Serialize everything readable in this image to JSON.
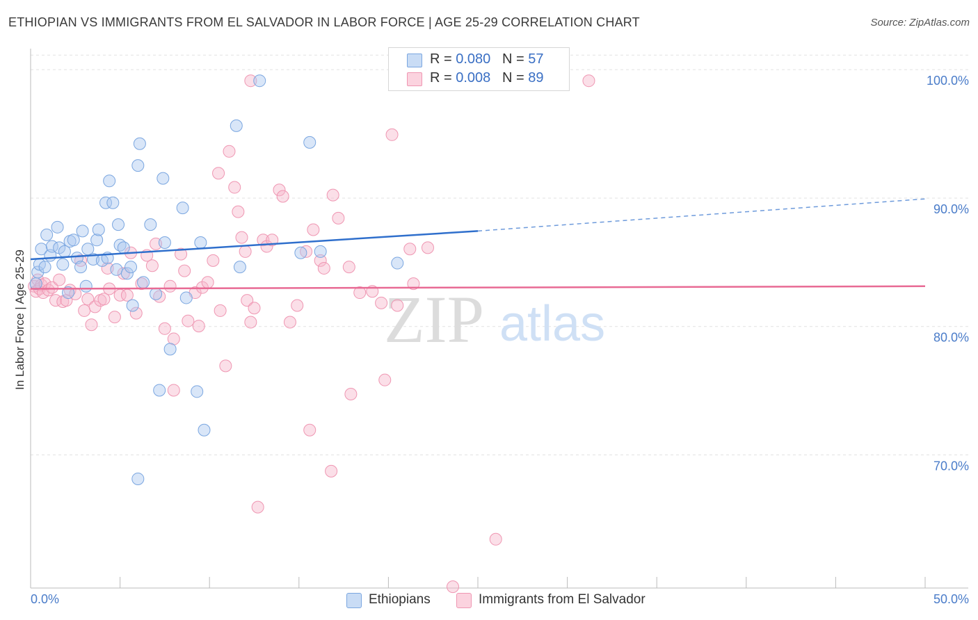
{
  "header": {
    "title": "ETHIOPIAN VS IMMIGRANTS FROM EL SALVADOR IN LABOR FORCE | AGE 25-29 CORRELATION CHART",
    "source": "Source: ZipAtlas.com"
  },
  "legend": {
    "rows": [
      {
        "r_label": "R = ",
        "r_value": "0.080",
        "n_label": "N = ",
        "n_value": "57"
      },
      {
        "r_label": "R = ",
        "r_value": "0.008",
        "n_label": "N = ",
        "n_value": "89"
      }
    ]
  },
  "bottom_legend": {
    "series1": "Ethiopians",
    "series2": "Immigrants from El Salvador"
  },
  "watermark": {
    "zip": "ZIP",
    "atlas": "atlas"
  },
  "colors": {
    "blue_fill": "#aac8f0",
    "blue_stroke": "#7aa6e0",
    "blue_line": "#2f6fcc",
    "pink_fill": "#f6b8cb",
    "pink_stroke": "#ef96b2",
    "pink_line": "#e86a94",
    "tick_text": "#4a7cc9"
  },
  "chart_data": {
    "type": "scatter",
    "title": "ETHIOPIAN VS IMMIGRANTS FROM EL SALVADOR IN LABOR FORCE | AGE 25-29 CORRELATION CHART",
    "xlabel": "",
    "ylabel": "In Labor Force | Age 25-29",
    "xlim": [
      0,
      50
    ],
    "ylim": [
      60.5,
      102.5
    ],
    "x_tick_labels": [
      "0.0%",
      "50.0%"
    ],
    "y_ticks": [
      70,
      80,
      90,
      100
    ],
    "y_tick_labels": [
      "70.0%",
      "80.0%",
      "90.0%",
      "100.0%"
    ],
    "grid": true,
    "legend_position": "top-center",
    "series": [
      {
        "name": "Ethiopians",
        "R": 0.08,
        "N": 57,
        "trend": {
          "x0": 0,
          "y0": 86.1,
          "x1": 25,
          "y1": 88.3,
          "dashed_x1": 50,
          "dashed_y1": 90.8
        },
        "points": [
          [
            0.3,
            84.2
          ],
          [
            0.4,
            85.1
          ],
          [
            0.5,
            85.7
          ],
          [
            0.6,
            86.9
          ],
          [
            0.8,
            85.5
          ],
          [
            0.9,
            88.0
          ],
          [
            1.1,
            86.4
          ],
          [
            1.2,
            87.1
          ],
          [
            1.5,
            88.6
          ],
          [
            1.6,
            87.0
          ],
          [
            1.8,
            85.7
          ],
          [
            1.9,
            86.7
          ],
          [
            2.2,
            87.5
          ],
          [
            2.4,
            87.6
          ],
          [
            2.6,
            86.2
          ],
          [
            2.8,
            85.5
          ],
          [
            2.9,
            88.3
          ],
          [
            3.2,
            86.9
          ],
          [
            3.5,
            86.1
          ],
          [
            3.7,
            87.6
          ],
          [
            3.8,
            88.4
          ],
          [
            4.0,
            86.0
          ],
          [
            4.2,
            90.5
          ],
          [
            4.3,
            86.2
          ],
          [
            4.4,
            92.2
          ],
          [
            4.6,
            90.5
          ],
          [
            4.8,
            85.3
          ],
          [
            4.9,
            88.8
          ],
          [
            5.0,
            87.2
          ],
          [
            5.2,
            87.0
          ],
          [
            5.4,
            85.0
          ],
          [
            5.6,
            85.5
          ],
          [
            5.7,
            82.5
          ],
          [
            6.0,
            93.4
          ],
          [
            6.1,
            95.1
          ],
          [
            6.3,
            84.3
          ],
          [
            6.7,
            88.8
          ],
          [
            7.0,
            83.4
          ],
          [
            7.2,
            75.9
          ],
          [
            7.4,
            92.4
          ],
          [
            7.5,
            87.4
          ],
          [
            7.8,
            79.1
          ],
          [
            8.5,
            90.1
          ],
          [
            8.7,
            83.1
          ],
          [
            9.3,
            75.8
          ],
          [
            9.5,
            87.4
          ],
          [
            9.7,
            72.8
          ],
          [
            11.5,
            96.5
          ],
          [
            11.7,
            85.5
          ],
          [
            12.8,
            100.0
          ],
          [
            15.1,
            86.6
          ],
          [
            15.6,
            95.2
          ],
          [
            16.2,
            86.7
          ],
          [
            20.5,
            85.8
          ],
          [
            6.0,
            69.0
          ],
          [
            3.1,
            84.0
          ],
          [
            2.1,
            83.5
          ]
        ]
      },
      {
        "name": "Immigrants from El Salvador",
        "R": 0.008,
        "N": 89,
        "trend": {
          "x0": 0,
          "y0": 83.8,
          "x1": 50,
          "y1": 84.0
        },
        "points": [
          [
            0.2,
            84.0
          ],
          [
            0.3,
            83.6
          ],
          [
            0.4,
            84.5
          ],
          [
            0.5,
            83.8
          ],
          [
            0.6,
            84.1
          ],
          [
            0.7,
            83.5
          ],
          [
            0.8,
            84.2
          ],
          [
            1.0,
            83.7
          ],
          [
            1.2,
            83.9
          ],
          [
            1.4,
            82.9
          ],
          [
            1.6,
            84.5
          ],
          [
            1.8,
            82.8
          ],
          [
            2.0,
            82.9
          ],
          [
            2.2,
            83.7
          ],
          [
            2.5,
            83.4
          ],
          [
            2.8,
            86.0
          ],
          [
            3.0,
            82.1
          ],
          [
            3.2,
            83.0
          ],
          [
            3.4,
            81.0
          ],
          [
            3.6,
            82.4
          ],
          [
            3.9,
            82.9
          ],
          [
            4.1,
            83.0
          ],
          [
            4.3,
            85.4
          ],
          [
            4.4,
            83.8
          ],
          [
            4.7,
            81.6
          ],
          [
            5.0,
            83.3
          ],
          [
            5.2,
            85.0
          ],
          [
            5.4,
            83.3
          ],
          [
            5.6,
            86.6
          ],
          [
            5.9,
            81.9
          ],
          [
            6.2,
            84.2
          ],
          [
            6.5,
            86.4
          ],
          [
            6.8,
            85.6
          ],
          [
            7.0,
            87.3
          ],
          [
            7.2,
            83.2
          ],
          [
            7.5,
            80.7
          ],
          [
            7.8,
            84.0
          ],
          [
            8.0,
            79.9
          ],
          [
            8.4,
            86.5
          ],
          [
            8.6,
            85.2
          ],
          [
            8.8,
            81.3
          ],
          [
            9.2,
            83.5
          ],
          [
            9.4,
            80.9
          ],
          [
            9.6,
            83.9
          ],
          [
            9.9,
            84.3
          ],
          [
            10.2,
            86.0
          ],
          [
            10.5,
            92.8
          ],
          [
            10.6,
            82.1
          ],
          [
            10.9,
            77.8
          ],
          [
            11.1,
            94.5
          ],
          [
            11.4,
            91.7
          ],
          [
            11.6,
            89.8
          ],
          [
            11.8,
            87.8
          ],
          [
            12.0,
            86.7
          ],
          [
            12.1,
            82.9
          ],
          [
            12.3,
            81.2
          ],
          [
            12.5,
            82.3
          ],
          [
            12.7,
            66.8
          ],
          [
            13.0,
            87.6
          ],
          [
            13.2,
            87.1
          ],
          [
            13.5,
            87.6
          ],
          [
            13.9,
            91.5
          ],
          [
            14.1,
            91.0
          ],
          [
            14.5,
            81.2
          ],
          [
            14.9,
            82.5
          ],
          [
            15.4,
            86.7
          ],
          [
            15.6,
            72.8
          ],
          [
            15.8,
            88.4
          ],
          [
            16.2,
            86.0
          ],
          [
            16.4,
            85.4
          ],
          [
            16.8,
            69.6
          ],
          [
            16.9,
            91.1
          ],
          [
            17.2,
            89.3
          ],
          [
            17.8,
            85.5
          ],
          [
            17.9,
            75.6
          ],
          [
            18.4,
            83.5
          ],
          [
            19.1,
            83.6
          ],
          [
            19.6,
            82.7
          ],
          [
            19.8,
            76.7
          ],
          [
            20.2,
            95.8
          ],
          [
            20.5,
            82.5
          ],
          [
            21.2,
            86.9
          ],
          [
            21.4,
            84.2
          ],
          [
            22.2,
            87.0
          ],
          [
            26.0,
            64.3
          ],
          [
            31.2,
            100.0
          ],
          [
            23.6,
            60.6
          ],
          [
            12.3,
            100.0
          ],
          [
            8.0,
            75.9
          ]
        ]
      }
    ]
  }
}
